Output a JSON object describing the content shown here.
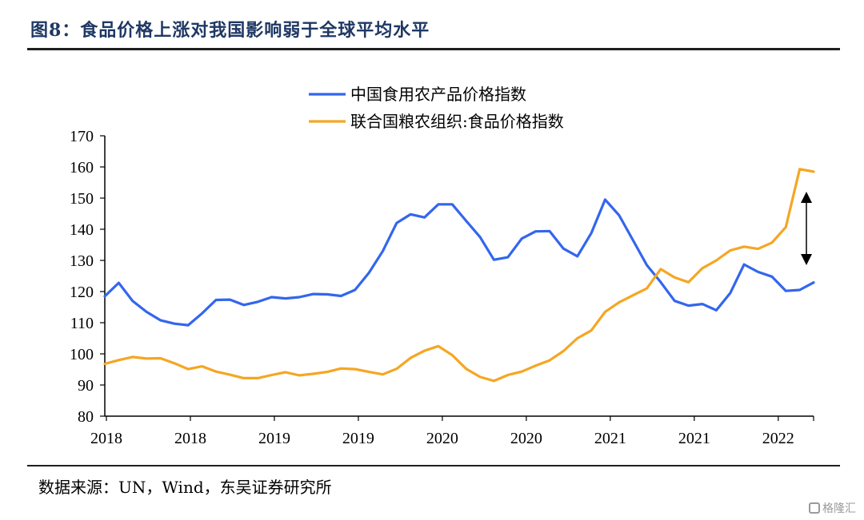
{
  "header": {
    "title": "图8：食品价格上涨对我国影响弱于全球平均水平"
  },
  "footer": {
    "source": "数据来源：UN，Wind，东吴证券研究所",
    "watermark": "格隆汇"
  },
  "chart_data": {
    "type": "line",
    "title": "",
    "xlabel": "",
    "ylabel": "",
    "ylim": [
      80,
      170
    ],
    "yticks": [
      80,
      90,
      100,
      110,
      120,
      130,
      140,
      150,
      160,
      170
    ],
    "xtick_labels": [
      "2018",
      "2018",
      "2019",
      "2019",
      "2020",
      "2020",
      "2021",
      "2021",
      "2022"
    ],
    "legend_position": "top-center",
    "grid": false,
    "annotation": "double-headed arrow between the two series at the latest point",
    "series": [
      {
        "name": "中国食用农产品价格指数",
        "color": "#3366ee",
        "values": [
          118.5,
          122.8,
          117.0,
          113.5,
          110.8,
          109.7,
          109.2,
          113.0,
          117.3,
          117.4,
          115.7,
          116.7,
          118.2,
          117.8,
          118.2,
          119.2,
          119.1,
          118.6,
          120.5,
          126.0,
          133.0,
          142.0,
          144.8,
          143.8,
          148.0,
          148.0,
          142.7,
          137.5,
          130.2,
          131.0,
          137.0,
          139.3,
          139.4,
          133.8,
          131.3,
          138.7,
          149.5,
          144.5,
          136.5,
          128.5,
          123.0,
          117.0,
          115.5,
          116.0,
          114.0,
          119.5,
          128.7,
          126.3,
          124.8,
          120.2,
          120.5,
          122.9
        ]
      },
      {
        "name": "联合国粮农组织:食品价格指数",
        "color": "#f5a623",
        "values": [
          96.8,
          98.0,
          99.0,
          98.5,
          98.6,
          97.0,
          95.1,
          96.0,
          94.3,
          93.3,
          92.2,
          92.2,
          93.2,
          94.1,
          93.1,
          93.6,
          94.2,
          95.3,
          95.1,
          94.2,
          93.4,
          95.2,
          98.7,
          101.0,
          102.5,
          99.6,
          95.2,
          92.6,
          91.3,
          93.2,
          94.3,
          96.2,
          97.9,
          100.9,
          105.0,
          107.5,
          113.5,
          116.5,
          118.8,
          121.0,
          127.2,
          124.5,
          123.0,
          127.5,
          130.0,
          133.2,
          134.4,
          133.7,
          135.7,
          140.7,
          159.3,
          158.5
        ]
      }
    ]
  }
}
